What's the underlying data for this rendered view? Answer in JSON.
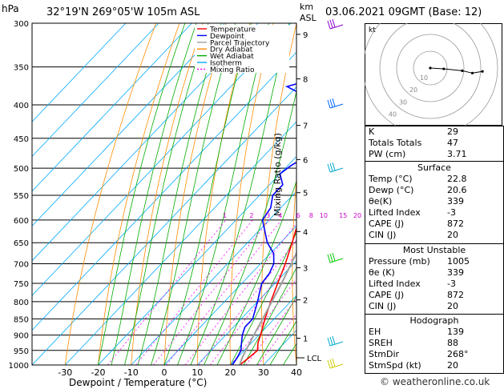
{
  "header": {
    "hpa_label": "hPa",
    "location": "32°19'N  269°05'W  105m  ASL",
    "km_label": "km",
    "asl_label": "ASL",
    "datetime": "03.06.2021  09GMT  (Base: 12)"
  },
  "chart_data": {
    "type": "line",
    "title": "Skew-T log-P diagram",
    "xlabel": "Dewpoint / Temperature (°C)",
    "ylabel": "Mixing Ratio (g/kg)",
    "pressure_ticks": [
      300,
      350,
      400,
      450,
      500,
      550,
      600,
      650,
      700,
      750,
      800,
      850,
      900,
      950,
      1000
    ],
    "temp_ticks": [
      -30,
      -20,
      -10,
      0,
      10,
      20,
      30,
      40
    ],
    "xlim": [
      -40,
      40
    ],
    "plim": [
      300,
      1000
    ],
    "km_ticks": [
      {
        "km": "1",
        "p": 910
      },
      {
        "km": "2",
        "p": 795
      },
      {
        "km": "3",
        "p": 710
      },
      {
        "km": "4",
        "p": 625
      },
      {
        "km": "5",
        "p": 545
      },
      {
        "km": "6",
        "p": 485
      },
      {
        "km": "7",
        "p": 430
      },
      {
        "km": "8",
        "p": 365
      },
      {
        "km": "9",
        "p": 312
      }
    ],
    "lcl_label": "LCL",
    "lcl_p": 975,
    "mixing_ratios": [
      "1",
      "2",
      "3",
      "4",
      "6",
      "8",
      "10",
      "15",
      "20",
      "25"
    ],
    "series": [
      {
        "name": "Temperature",
        "color": "#ff0000",
        "points": [
          [
            1000,
            22.8
          ],
          [
            975,
            23.5
          ],
          [
            950,
            24
          ],
          [
            925,
            22
          ],
          [
            900,
            20.5
          ],
          [
            850,
            17.2
          ],
          [
            800,
            14
          ],
          [
            750,
            10.8
          ],
          [
            700,
            7.5
          ],
          [
            650,
            3.5
          ],
          [
            600,
            -1
          ],
          [
            550,
            -6
          ],
          [
            500,
            -10.5
          ],
          [
            450,
            -14.5
          ],
          [
            400,
            -21
          ],
          [
            350,
            -27.5
          ],
          [
            300,
            -35
          ]
        ]
      },
      {
        "name": "Dewpoint",
        "color": "#0000ff",
        "points": [
          [
            1000,
            20.6
          ],
          [
            975,
            20
          ],
          [
            950,
            19
          ],
          [
            925,
            17
          ],
          [
            900,
            15
          ],
          [
            875,
            13.5
          ],
          [
            850,
            13.5
          ],
          [
            800,
            10
          ],
          [
            775,
            8
          ],
          [
            750,
            6
          ],
          [
            725,
            5.5
          ],
          [
            700,
            4
          ],
          [
            675,
            1
          ],
          [
            650,
            -4
          ],
          [
            600,
            -12
          ],
          [
            575,
            -13
          ],
          [
            550,
            -16
          ],
          [
            530,
            -16
          ],
          [
            510,
            -20
          ],
          [
            495,
            -19
          ],
          [
            480,
            -17
          ],
          [
            460,
            -17
          ],
          [
            440,
            -19
          ],
          [
            425,
            -13
          ],
          [
            410,
            -16
          ],
          [
            400,
            -27
          ],
          [
            375,
            -43
          ],
          [
            362,
            -35
          ],
          [
            350,
            -45
          ],
          [
            335,
            -36
          ],
          [
            315,
            -18
          ],
          [
            302,
            -10
          ],
          [
            300,
            -9
          ]
        ]
      },
      {
        "name": "Parcel Trajectory",
        "color": "#a0a0a0",
        "points": [
          [
            1000,
            22.8
          ],
          [
            975,
            21.5
          ],
          [
            950,
            20.5
          ],
          [
            900,
            18.5
          ],
          [
            850,
            16.5
          ],
          [
            800,
            14.3
          ],
          [
            750,
            12
          ],
          [
            700,
            9.3
          ],
          [
            650,
            6.4
          ],
          [
            600,
            3
          ],
          [
            550,
            -0.8
          ],
          [
            500,
            -5
          ],
          [
            450,
            -10
          ],
          [
            400,
            -16
          ],
          [
            350,
            -23
          ],
          [
            300,
            -31.5
          ]
        ]
      }
    ],
    "legend": [
      "Temperature",
      "Dewpoint",
      "Parcel Trajectory",
      "Dry Adiabat",
      "Wet Adiabat",
      "Isotherm",
      "Mixing Ratio"
    ],
    "legend_colors": [
      "#ff0000",
      "#0000ff",
      "#a0a0a0",
      "#ff8c00",
      "#00aa00",
      "#00aaff",
      "#ff00ff"
    ],
    "hodograph": {
      "label": "kt",
      "ring_labels": [
        "10",
        "20",
        "30",
        "40"
      ],
      "points": [
        [
          0,
          0
        ],
        [
          -0.5,
          8
        ],
        [
          -1.6,
          19
        ],
        [
          -3,
          25
        ],
        [
          -2,
          31
        ]
      ]
    }
  },
  "indices": {
    "k_label": "K",
    "k_value": "29",
    "tt_label": "Totals Totals",
    "tt_value": "47",
    "pw_label": "PW (cm)",
    "pw_value": "3.71"
  },
  "surface": {
    "title": "Surface",
    "rows": [
      {
        "label": "Temp (°C)",
        "value": "22.8"
      },
      {
        "label": "Dewp (°C)",
        "value": "20.6"
      },
      {
        "label": "θe(K)",
        "value": "339"
      },
      {
        "label": "Lifted Index",
        "value": "-3"
      },
      {
        "label": "CAPE (J)",
        "value": "872"
      },
      {
        "label": "CIN (J)",
        "value": "20"
      }
    ]
  },
  "most_unstable": {
    "title": "Most Unstable",
    "rows": [
      {
        "label": "Pressure (mb)",
        "value": "1005"
      },
      {
        "label": "θe (K)",
        "value": "339"
      },
      {
        "label": "Lifted Index",
        "value": "-3"
      },
      {
        "label": "CAPE (J)",
        "value": "872"
      },
      {
        "label": "CIN (J)",
        "value": "20"
      }
    ]
  },
  "hodograph_table": {
    "title": "Hodograph",
    "rows": [
      {
        "label": "EH",
        "value": "139"
      },
      {
        "label": "SREH",
        "value": "88"
      },
      {
        "label": "StmDir",
        "value": "268°"
      },
      {
        "label": "StmSpd (kt)",
        "value": "20"
      }
    ]
  },
  "footer": {
    "copyright": "© weatheronline.co.uk"
  }
}
